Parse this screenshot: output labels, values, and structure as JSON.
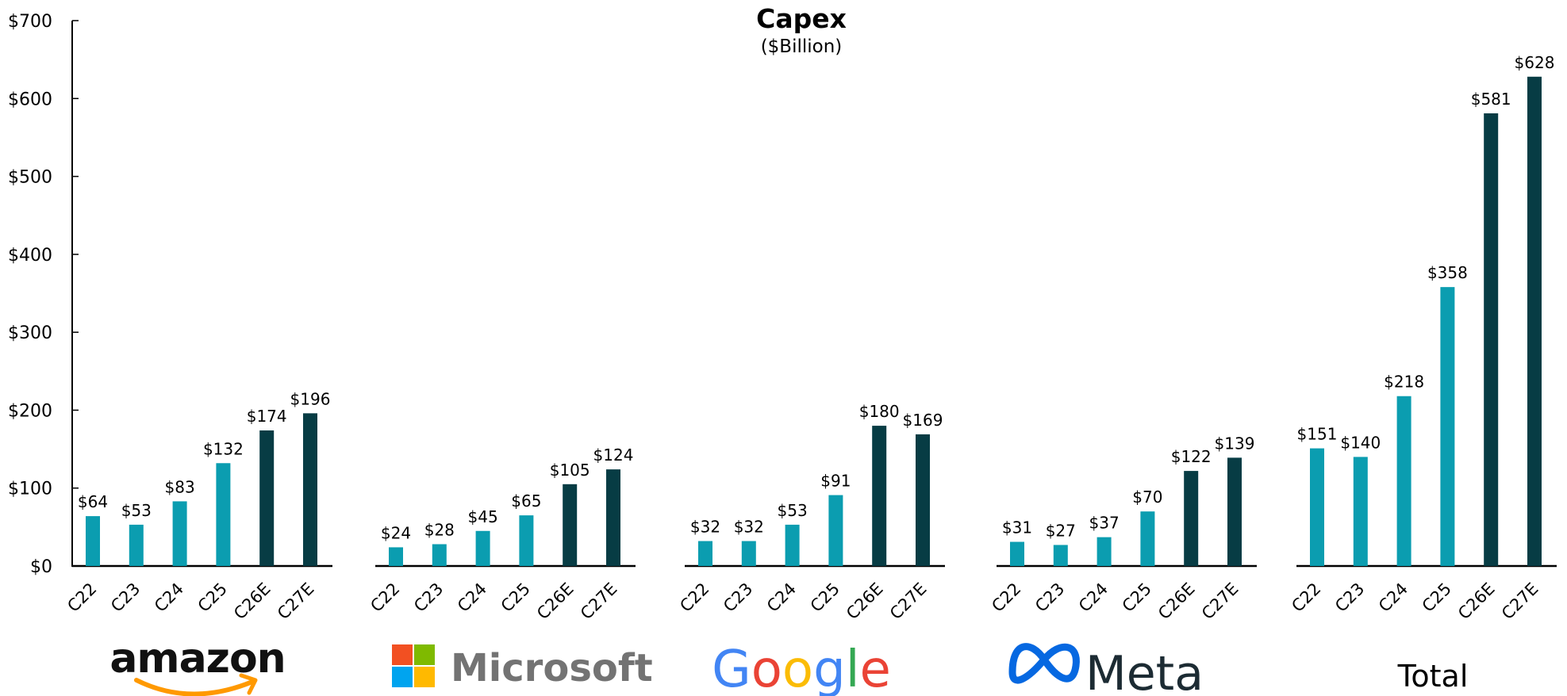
{
  "chart_data": {
    "type": "bar",
    "title": "Capex",
    "subtitle": "($Billion)",
    "xlabel": "",
    "ylabel": "",
    "ylim": [
      0,
      700
    ],
    "y_ticks": [
      "$0",
      "$100",
      "$200",
      "$300",
      "$400",
      "$500",
      "$600",
      "$700"
    ],
    "y_tick_values": [
      0,
      100,
      200,
      300,
      400,
      500,
      600,
      700
    ],
    "grid": false,
    "categories": [
      "C22",
      "C23",
      "C24",
      "C25",
      "C26E",
      "C27E"
    ],
    "colors": {
      "actual": "#0B9DB0",
      "estimate": "#073C44",
      "axis": "#000000"
    },
    "estimate_categories": [
      "C26E",
      "C27E"
    ],
    "groups": [
      {
        "name": "amazon",
        "logo": "amazon-logo",
        "values": [
          64,
          53,
          83,
          132,
          174,
          196
        ],
        "labels": [
          "$64",
          "$53",
          "$83",
          "$132",
          "$174",
          "$196"
        ]
      },
      {
        "name": "Microsoft",
        "logo": "microsoft-logo",
        "values": [
          24,
          28,
          45,
          65,
          105,
          124
        ],
        "labels": [
          "$24",
          "$28",
          "$45",
          "$65",
          "$105",
          "$124"
        ]
      },
      {
        "name": "Google",
        "logo": "google-logo",
        "values": [
          32,
          32,
          53,
          91,
          180,
          169
        ],
        "labels": [
          "$32",
          "$32",
          "$53",
          "$91",
          "$180",
          "$169"
        ]
      },
      {
        "name": "Meta",
        "logo": "meta-logo",
        "values": [
          31,
          27,
          37,
          70,
          122,
          139
        ],
        "labels": [
          "$31",
          "$27",
          "$37",
          "$70",
          "$122",
          "$139"
        ]
      },
      {
        "name": "Total",
        "logo": "",
        "values": [
          151,
          140,
          218,
          358,
          581,
          628
        ],
        "labels": [
          "$151",
          "$140",
          "$218",
          "$358",
          "$581",
          "$628"
        ]
      }
    ]
  }
}
